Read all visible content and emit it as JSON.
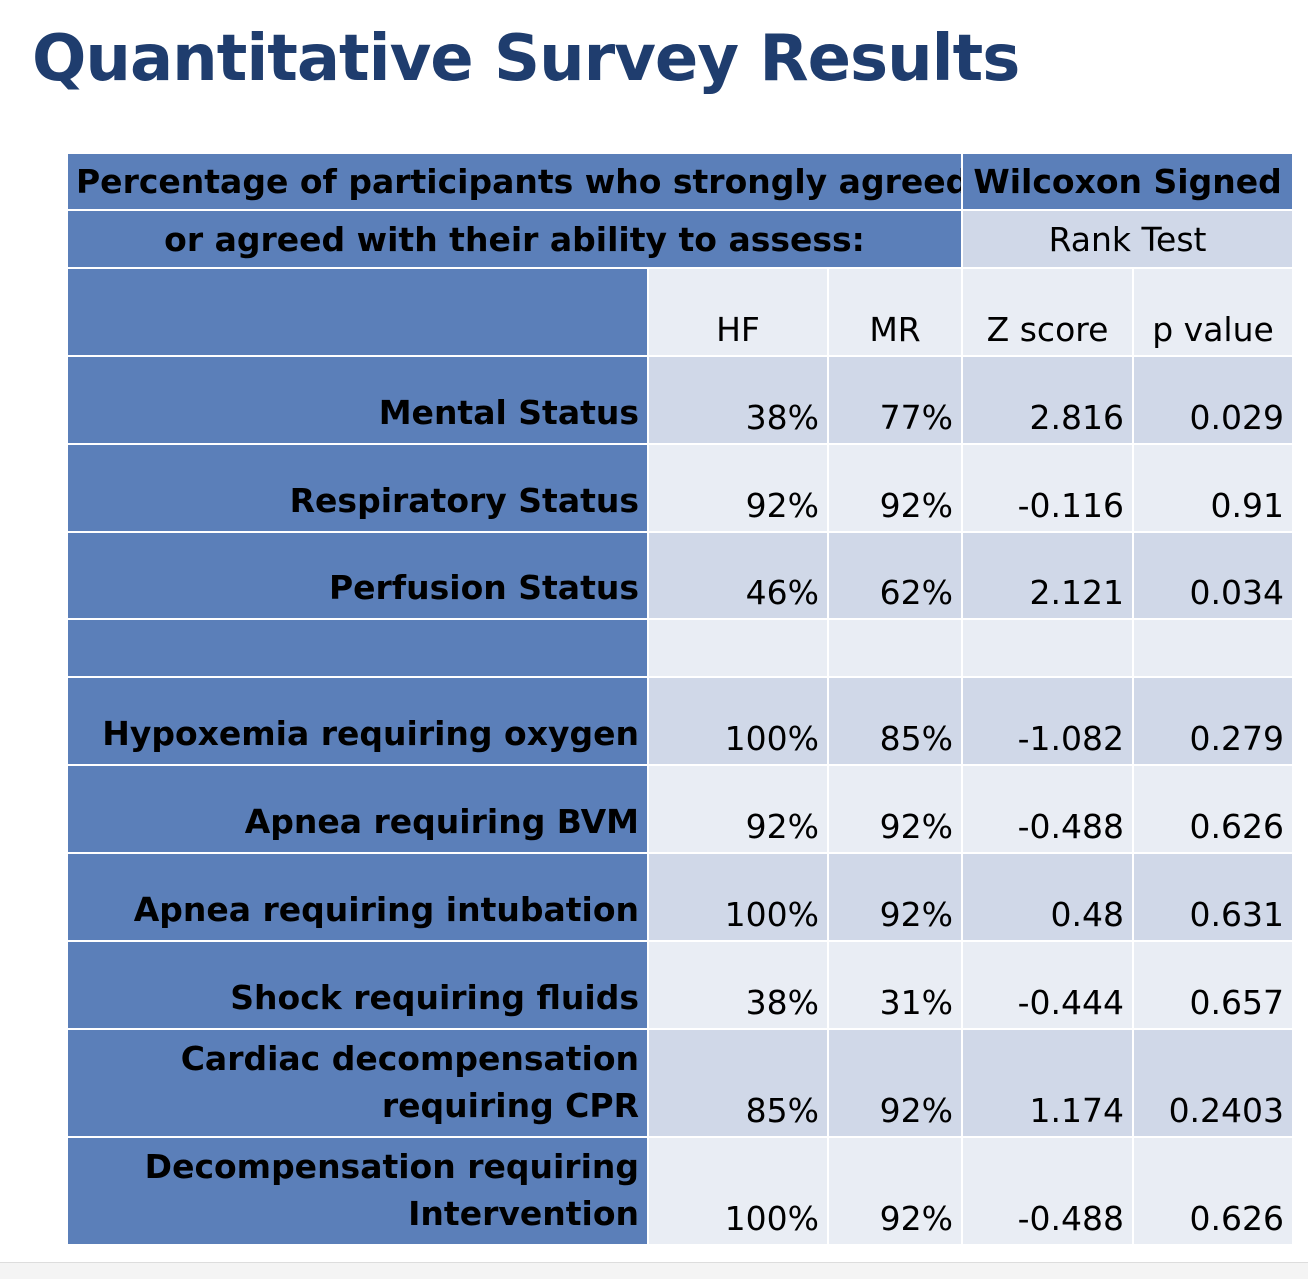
{
  "title": "Quantitative Survey Results",
  "header": {
    "left_line1": "Percentage of participants who strongly agreed",
    "left_line2": "or agreed with their ability to assess:",
    "right_line1": "Wilcoxon Signed",
    "right_line2": "Rank Test"
  },
  "columns": [
    "HF",
    "MR",
    "Z score",
    "p value"
  ],
  "rows": [
    {
      "label": [
        "Mental Status"
      ],
      "hf": "38%",
      "mr": "77%",
      "z": "2.816",
      "p": "0.029"
    },
    {
      "label": [
        "Respiratory Status"
      ],
      "hf": "92%",
      "mr": "92%",
      "z": "-0.116",
      "p": "0.91"
    },
    {
      "label": [
        "Perfusion Status"
      ],
      "hf": "46%",
      "mr": "62%",
      "z": "2.121",
      "p": "0.034"
    },
    {
      "label": [
        ""
      ],
      "hf": "",
      "mr": "",
      "z": "",
      "p": ""
    },
    {
      "label": [
        "Hypoxemia requiring oxygen"
      ],
      "hf": "100%",
      "mr": "85%",
      "z": "-1.082",
      "p": "0.279"
    },
    {
      "label": [
        "Apnea requiring BVM"
      ],
      "hf": "92%",
      "mr": "92%",
      "z": "-0.488",
      "p": "0.626"
    },
    {
      "label": [
        "Apnea requiring intubation"
      ],
      "hf": "100%",
      "mr": "92%",
      "z": "0.48",
      "p": "0.631"
    },
    {
      "label": [
        "Shock requiring fluids"
      ],
      "hf": "38%",
      "mr": "31%",
      "z": "-0.444",
      "p": "0.657"
    },
    {
      "label": [
        "Cardiac decompensation",
        "requiring CPR"
      ],
      "hf": "85%",
      "mr": "92%",
      "z": "1.174",
      "p": "0.2403"
    },
    {
      "label": [
        "Decompensation requiring",
        "Intervention"
      ],
      "hf": "100%",
      "mr": "92%",
      "z": "-0.488",
      "p": "0.626"
    }
  ]
}
